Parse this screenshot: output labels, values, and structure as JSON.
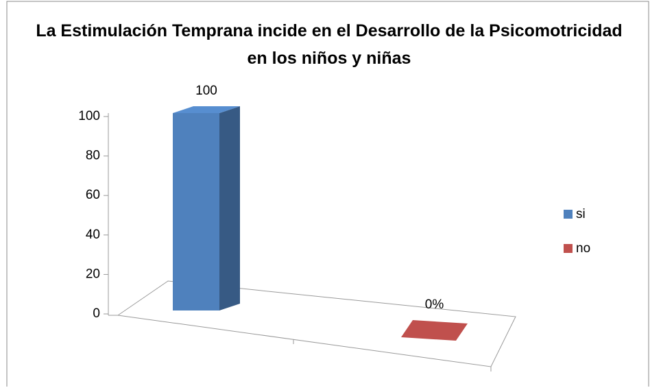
{
  "chart_data": {
    "type": "bar3d",
    "title": "La Estimulación Temprana incide en el Desarrollo de la Psicomotricidad en los niños y niñas",
    "categories": [
      null
    ],
    "series": [
      {
        "name": "si",
        "color": "#4f81bd",
        "values": [
          100
        ]
      },
      {
        "name": "no",
        "color": "#c0504d",
        "values": [
          0
        ],
        "value_labels": [
          "0%"
        ]
      }
    ],
    "ylim": [
      0,
      100
    ],
    "yticks": [
      0,
      20,
      40,
      60,
      80,
      100
    ],
    "legend": "right"
  }
}
